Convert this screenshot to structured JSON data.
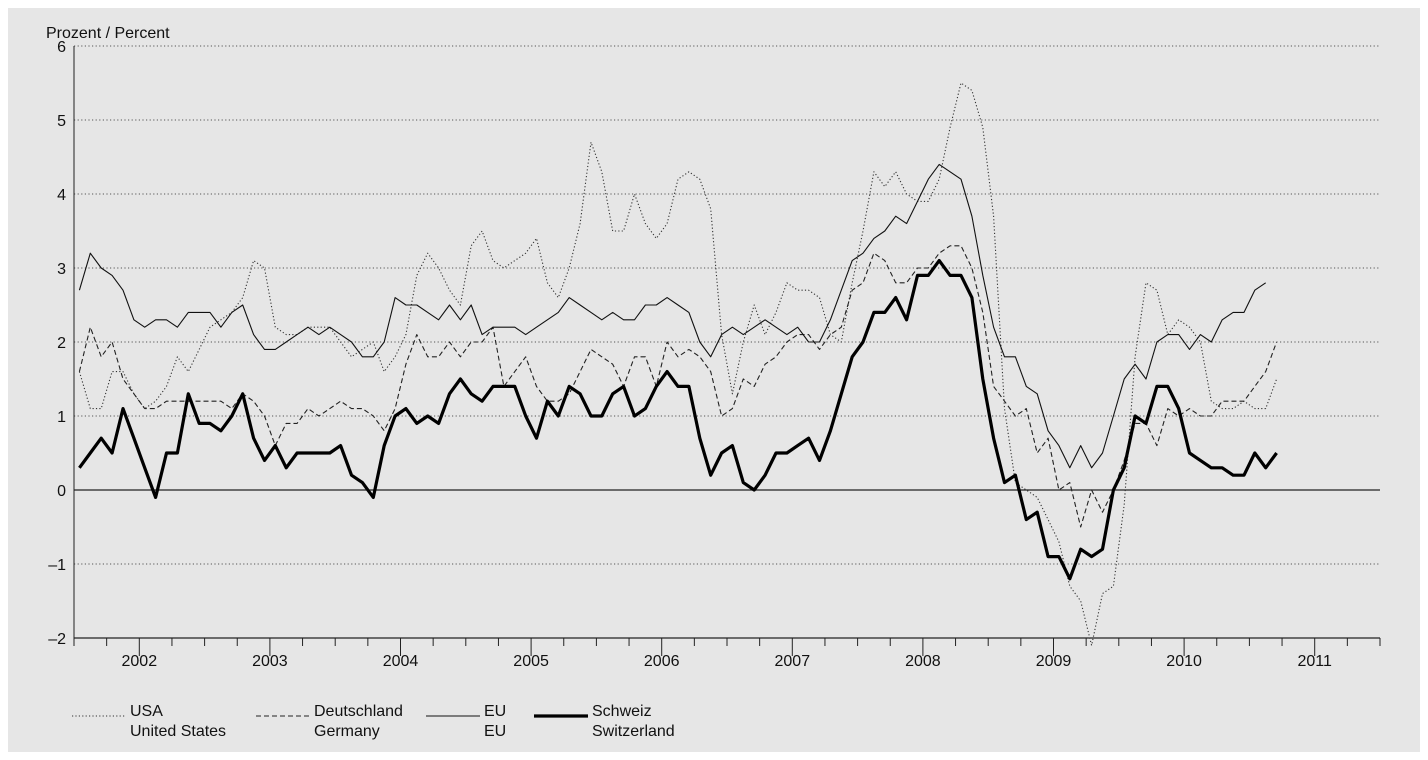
{
  "chart_data": {
    "type": "line",
    "ylabel": "Prozent / Percent",
    "ylim": [
      -2,
      6
    ],
    "yticks": [
      6,
      5,
      4,
      3,
      2,
      1,
      0,
      -1,
      -2
    ],
    "ytick_labels": [
      "6",
      "5",
      "4",
      "3",
      "2",
      "1",
      "0",
      "–1",
      "–2"
    ],
    "x_start_year": 2001.5,
    "x_end_year": 2011.5,
    "year_labels": [
      "2002",
      "2003",
      "2004",
      "2005",
      "2006",
      "2007",
      "2008",
      "2009",
      "2010",
      "2011"
    ],
    "grid": "horizontal dotted",
    "legend_position": "bottom-left",
    "series": [
      {
        "key": "usa",
        "legend_line1": "USA",
        "legend_line2": "United States",
        "style": "dotted",
        "start": "2001-07",
        "values": [
          1.6,
          1.1,
          1.1,
          1.6,
          1.6,
          1.3,
          1.1,
          1.2,
          1.4,
          1.8,
          1.6,
          1.9,
          2.2,
          2.3,
          2.4,
          2.6,
          3.1,
          3.0,
          2.2,
          2.1,
          2.1,
          2.2,
          2.2,
          2.2,
          2.0,
          1.8,
          1.9,
          2.0,
          1.6,
          1.8,
          2.1,
          2.9,
          3.2,
          3.0,
          2.7,
          2.5,
          3.3,
          3.5,
          3.1,
          3.0,
          3.1,
          3.2,
          3.4,
          2.8,
          2.6,
          3.0,
          3.6,
          4.7,
          4.3,
          3.5,
          3.5,
          4.0,
          3.6,
          3.4,
          3.6,
          4.2,
          4.3,
          4.2,
          3.8,
          2.1,
          1.3,
          2.0,
          2.5,
          2.1,
          2.4,
          2.8,
          2.7,
          2.7,
          2.6,
          2.1,
          2.0,
          2.8,
          3.5,
          4.3,
          4.1,
          4.3,
          4.0,
          3.9,
          3.9,
          4.2,
          4.9,
          5.5,
          5.4,
          4.9,
          3.7,
          1.1,
          0.1,
          0.0,
          -0.1,
          -0.4,
          -0.7,
          -1.3,
          -1.5,
          -2.1,
          -1.4,
          -1.3,
          -0.2,
          1.8,
          2.8,
          2.7,
          2.1,
          2.3,
          2.2,
          2.0,
          1.2,
          1.1,
          1.1,
          1.2,
          1.1,
          1.1,
          1.5
        ],
        "color": "#333333"
      },
      {
        "key": "germany",
        "legend_line1": "Deutschland",
        "legend_line2": "Germany",
        "style": "dashed",
        "start": "2001-07",
        "values": [
          1.6,
          2.2,
          1.8,
          2.0,
          1.5,
          1.3,
          1.1,
          1.1,
          1.2,
          1.2,
          1.2,
          1.2,
          1.2,
          1.2,
          1.1,
          1.3,
          1.2,
          1.0,
          0.6,
          0.9,
          0.9,
          1.1,
          1.0,
          1.1,
          1.2,
          1.1,
          1.1,
          1.0,
          0.8,
          1.1,
          1.7,
          2.1,
          1.8,
          1.8,
          2.0,
          1.8,
          2.0,
          2.0,
          2.2,
          1.4,
          1.6,
          1.8,
          1.4,
          1.2,
          1.2,
          1.3,
          1.6,
          1.9,
          1.8,
          1.7,
          1.4,
          1.8,
          1.8,
          1.4,
          2.0,
          1.8,
          1.9,
          1.8,
          1.6,
          1.0,
          1.1,
          1.5,
          1.4,
          1.7,
          1.8,
          2.0,
          2.1,
          2.1,
          1.9,
          2.1,
          2.2,
          2.7,
          2.8,
          3.2,
          3.1,
          2.8,
          2.8,
          3.0,
          3.0,
          3.2,
          3.3,
          3.3,
          3.0,
          2.4,
          1.4,
          1.2,
          1.0,
          1.1,
          0.5,
          0.7,
          0.0,
          0.1,
          -0.5,
          0.0,
          -0.3,
          0.0,
          0.4,
          0.9,
          0.9,
          0.6,
          1.1,
          1.0,
          1.1,
          1.0,
          1.0,
          1.2,
          1.2,
          1.2,
          1.4,
          1.6,
          2.0
        ],
        "color": "#222222"
      },
      {
        "key": "eu",
        "legend_line1": "EU",
        "legend_line2": "EU",
        "style": "solid",
        "start": "2001-07",
        "values": [
          2.7,
          3.2,
          3.0,
          2.9,
          2.7,
          2.3,
          2.2,
          2.3,
          2.3,
          2.2,
          2.4,
          2.4,
          2.4,
          2.2,
          2.4,
          2.5,
          2.1,
          1.9,
          1.9,
          2.0,
          2.1,
          2.2,
          2.1,
          2.2,
          2.1,
          2.0,
          1.8,
          1.8,
          2.0,
          2.6,
          2.5,
          2.5,
          2.4,
          2.3,
          2.5,
          2.3,
          2.5,
          2.1,
          2.2,
          2.2,
          2.2,
          2.1,
          2.2,
          2.3,
          2.4,
          2.6,
          2.5,
          2.4,
          2.3,
          2.4,
          2.3,
          2.3,
          2.5,
          2.5,
          2.6,
          2.5,
          2.4,
          2.0,
          1.8,
          2.1,
          2.2,
          2.1,
          2.2,
          2.3,
          2.2,
          2.1,
          2.2,
          2.0,
          2.0,
          2.3,
          2.7,
          3.1,
          3.2,
          3.4,
          3.5,
          3.7,
          3.6,
          3.9,
          4.2,
          4.4,
          4.3,
          4.2,
          3.7,
          2.9,
          2.2,
          1.8,
          1.8,
          1.4,
          1.3,
          0.8,
          0.6,
          0.3,
          0.6,
          0.3,
          0.5,
          1.0,
          1.5,
          1.7,
          1.5,
          2.0,
          2.1,
          2.1,
          1.9,
          2.1,
          2.0,
          2.3,
          2.4,
          2.4,
          2.7,
          2.8
        ],
        "color": "#111111"
      },
      {
        "key": "switzerland",
        "legend_line1": "Schweiz",
        "legend_line2": "Switzerland",
        "style": "bold",
        "start": "2001-07",
        "values": [
          0.3,
          0.5,
          0.7,
          0.5,
          1.1,
          0.7,
          0.3,
          -0.1,
          0.5,
          0.5,
          1.3,
          0.9,
          0.9,
          0.8,
          1.0,
          1.3,
          0.7,
          0.4,
          0.6,
          0.3,
          0.5,
          0.5,
          0.5,
          0.5,
          0.6,
          0.2,
          0.1,
          -0.1,
          0.6,
          1.0,
          1.1,
          0.9,
          1.0,
          0.9,
          1.3,
          1.5,
          1.3,
          1.2,
          1.4,
          1.4,
          1.4,
          1.0,
          0.7,
          1.2,
          1.0,
          1.4,
          1.3,
          1.0,
          1.0,
          1.3,
          1.4,
          1.0,
          1.1,
          1.4,
          1.6,
          1.4,
          1.4,
          0.7,
          0.2,
          0.5,
          0.6,
          0.1,
          0.0,
          0.2,
          0.5,
          0.5,
          0.6,
          0.7,
          0.4,
          0.8,
          1.3,
          1.8,
          2.0,
          2.4,
          2.4,
          2.6,
          2.3,
          2.9,
          2.9,
          3.1,
          2.9,
          2.9,
          2.6,
          1.5,
          0.7,
          0.1,
          0.2,
          -0.4,
          -0.3,
          -0.9,
          -0.9,
          -1.2,
          -0.8,
          -0.9,
          -0.8,
          0.0,
          0.3,
          1.0,
          0.9,
          1.4,
          1.4,
          1.1,
          0.5,
          0.4,
          0.3,
          0.3,
          0.2,
          0.2,
          0.5,
          0.3,
          0.5
        ],
        "color": "#000000"
      }
    ]
  }
}
